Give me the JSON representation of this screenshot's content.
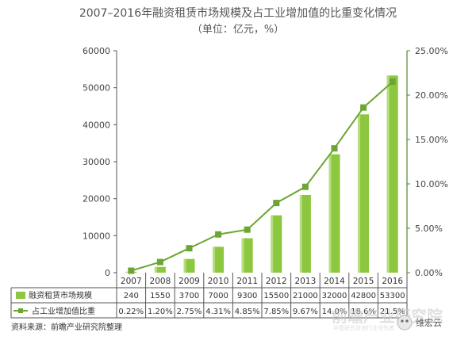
{
  "chart_data": {
    "type": "bar+line",
    "title": "2007–2016年融资租赁市场规模及占工业增加值的比重变化情况",
    "subtitle": "（单位：亿元，%）",
    "categories": [
      "2007",
      "2008",
      "2009",
      "2010",
      "2011",
      "2012",
      "2013",
      "2014",
      "2015",
      "2016"
    ],
    "series": [
      {
        "name": "融资租赁市场规模",
        "kind": "bar",
        "axis": "left",
        "values": [
          240,
          1550,
          3700,
          7000,
          9300,
          15500,
          21000,
          32000,
          42800,
          53300
        ],
        "labels": [
          "240",
          "1550",
          "3700",
          "7000",
          "9300",
          "15500",
          "21000",
          "32000",
          "42800",
          "53300"
        ]
      },
      {
        "name": "占工业增加值比重",
        "kind": "line",
        "axis": "right",
        "values": [
          0.22,
          1.2,
          2.75,
          4.31,
          4.85,
          7.85,
          9.67,
          14.0,
          18.6,
          21.5
        ],
        "labels": [
          "0.22%",
          "1.20%",
          "2.75%",
          "4.31%",
          "4.85%",
          "7.85%",
          "9.67%",
          "14.0%",
          "18.6%",
          "21.5%"
        ]
      }
    ],
    "y_left": {
      "ylim": [
        0,
        60000
      ],
      "ticks": [
        0,
        10000,
        20000,
        30000,
        40000,
        50000,
        60000
      ],
      "tick_labels": [
        "0",
        "10000",
        "20000",
        "30000",
        "40000",
        "50000",
        "60000"
      ]
    },
    "y_right": {
      "ylim": [
        0,
        25
      ],
      "ticks": [
        0,
        5,
        10,
        15,
        20,
        25
      ],
      "tick_labels": [
        "0.00%",
        "5.00%",
        "10.00%",
        "15.00%",
        "20.00%",
        "25.00%"
      ]
    },
    "grid": false,
    "legend": "data-table-below"
  },
  "source": "资料来源：前瞻产业研究院整理",
  "watermark": {
    "main": "前瞻产业研究院",
    "sub": "中国研究咨询行业领先者"
  },
  "badge": {
    "text": "维宏云"
  },
  "colors": {
    "bar": "#8dc63f",
    "bar_highlight": "#b6dd80",
    "line": "#6aa630",
    "axis": "#4a8a2a",
    "table_line": "#555555"
  }
}
